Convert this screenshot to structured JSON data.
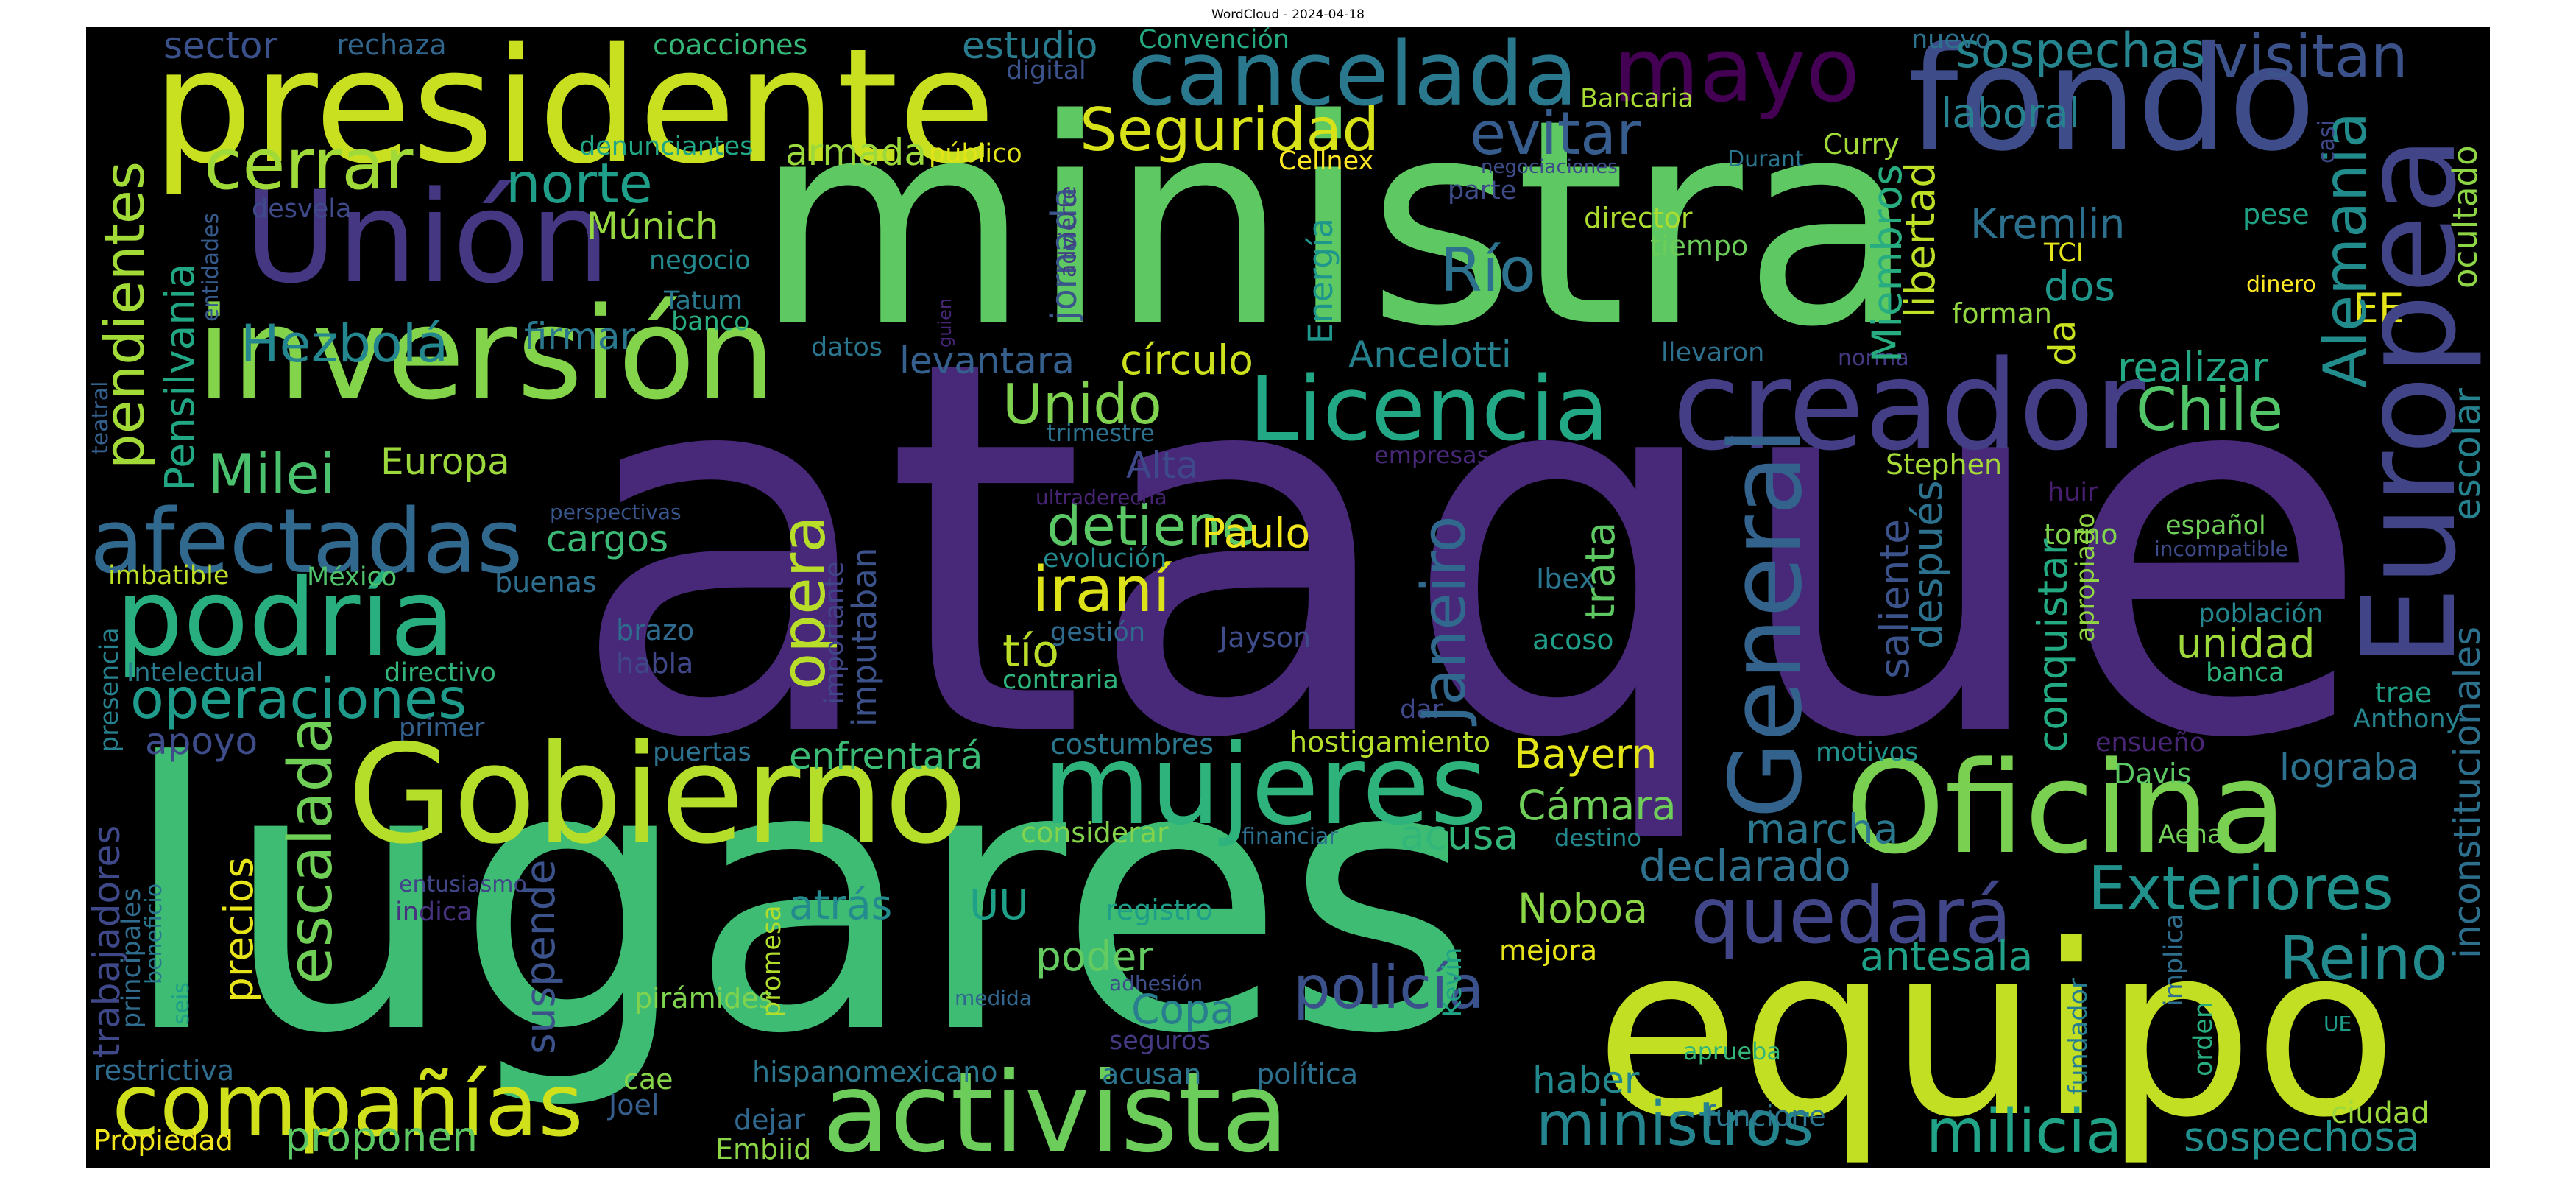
{
  "figure": {
    "title": "WordCloud - 2024-04-18"
  },
  "words": [
    {
      "id": "ataque",
      "text": "ataque",
      "color": "#482878"
    },
    {
      "id": "lugares",
      "text": "lugares",
      "color": "#3fbc73"
    },
    {
      "id": "ministra",
      "text": "ministra",
      "color": "#5ec962"
    },
    {
      "id": "presidente",
      "text": "presidente",
      "color": "#c8e020"
    },
    {
      "id": "equipo",
      "text": "equipo",
      "color": "#c2df23"
    },
    {
      "id": "fondo",
      "text": "fondo",
      "color": "#3e4c8a"
    },
    {
      "id": "europea",
      "text": "Europea",
      "color": "#414487"
    },
    {
      "id": "union",
      "text": "Unión",
      "color": "#453781"
    },
    {
      "id": "inversion",
      "text": "inversión",
      "color": "#84d44b"
    },
    {
      "id": "creador",
      "text": "creador",
      "color": "#433e85"
    },
    {
      "id": "gobierno",
      "text": "Gobierno",
      "color": "#b5de2b"
    },
    {
      "id": "oficina",
      "text": "Oficina",
      "color": "#7ad151"
    },
    {
      "id": "activista",
      "text": "activista",
      "color": "#6ccd5a"
    },
    {
      "id": "mujeres",
      "text": "mujeres",
      "color": "#2eb37c"
    },
    {
      "id": "cancelada",
      "text": "cancelada",
      "color": "#2a788e"
    },
    {
      "id": "mayo",
      "text": "mayo",
      "color": "#440154"
    },
    {
      "id": "podria",
      "text": "podría",
      "color": "#29af7f"
    },
    {
      "id": "companias",
      "text": "compañías",
      "color": "#d0e11c"
    },
    {
      "id": "afectadas",
      "text": "afectadas",
      "color": "#31688e"
    },
    {
      "id": "licencia",
      "text": "Licencia",
      "color": "#22a884"
    },
    {
      "id": "quedara",
      "text": "quedará",
      "color": "#404688"
    },
    {
      "id": "exteriores",
      "text": "Exteriores",
      "color": "#21918c"
    },
    {
      "id": "general",
      "text": "General",
      "color": "#33628d"
    },
    {
      "id": "cerrar",
      "text": "cerrar",
      "color": "#a0da39"
    },
    {
      "id": "seguridad",
      "text": "Seguridad",
      "color": "#d8e219"
    },
    {
      "id": "evitar",
      "text": "evitar",
      "color": "#365d8d"
    },
    {
      "id": "visitan",
      "text": "visitan",
      "color": "#3b528b"
    },
    {
      "id": "sospechas",
      "text": "sospechas",
      "color": "#25848e"
    },
    {
      "id": "norte",
      "text": "norte",
      "color": "#1f9e89"
    },
    {
      "id": "hezbola",
      "text": "Hezbolá",
      "color": "#24868e"
    },
    {
      "id": "pendientes",
      "text": "pendientes",
      "color": "#a2da37"
    },
    {
      "id": "milei",
      "text": "Milei",
      "color": "#4ac16d"
    },
    {
      "id": "pensilvania",
      "text": "Pensilvania",
      "color": "#22a785"
    },
    {
      "id": "operaciones",
      "text": "operaciones",
      "color": "#1e9b8a"
    },
    {
      "id": "unido",
      "text": "Unido",
      "color": "#7fd34e"
    },
    {
      "id": "rio",
      "text": "Río",
      "color": "#2c718e"
    },
    {
      "id": "alemania",
      "text": "Alemania",
      "color": "#228c8d"
    },
    {
      "id": "chile",
      "text": "Chile",
      "color": "#52c569"
    },
    {
      "id": "reino",
      "text": "Reino",
      "color": "#238a8d"
    },
    {
      "id": "ministros",
      "text": "ministros",
      "color": "#25858e"
    },
    {
      "id": "milicia",
      "text": "milicia",
      "color": "#20a386"
    },
    {
      "id": "irani",
      "text": "iraní",
      "color": "#dde318"
    },
    {
      "id": "policia",
      "text": "policía",
      "color": "#b8de29"
    },
    {
      "id": "detiene",
      "text": "detiene",
      "color": "#3b518b"
    },
    {
      "id": "opera",
      "text": "opera",
      "color": "#5ac864"
    },
    {
      "id": "escalada",
      "text": "escalada",
      "color": "#70cf57"
    },
    {
      "id": "janeiro",
      "text": "Janeiro",
      "color": "#31688e"
    },
    {
      "id": "miembros",
      "text": "Miembros",
      "color": "#27ad81"
    },
    {
      "id": "libertad",
      "text": "libertad",
      "color": "#bddf26"
    },
    {
      "id": "kremlin",
      "text": "Kremlin",
      "color": "#2d708e"
    },
    {
      "id": "laboral",
      "text": "laboral",
      "color": "#26828e"
    },
    {
      "id": "paulo",
      "text": "Paulo",
      "color": "#f1e51d"
    },
    {
      "id": "bayern",
      "text": "Bayern",
      "color": "#e2e418"
    },
    {
      "id": "camara",
      "text": "Cámara",
      "color": "#6ece58"
    },
    {
      "id": "noboa",
      "text": "Noboa",
      "color": "#8bd646"
    },
    {
      "id": "declarado",
      "text": "declarado",
      "color": "#2d718e"
    },
    {
      "id": "marcha",
      "text": "marcha",
      "color": "#2a778e"
    },
    {
      "id": "antesala",
      "text": "antesala",
      "color": "#1fa188"
    },
    {
      "id": "sospechosa",
      "text": "sospechosa",
      "color": "#218f8d"
    },
    {
      "id": "logaba",
      "text": "lograba",
      "color": "#2c728e"
    },
    {
      "id": "unidad",
      "text": "unidad",
      "color": "#9dd93b"
    },
    {
      "id": "inconstitucionales",
      "text": "inconstitucionales",
      "color": "#2d708e"
    },
    {
      "id": "escolar",
      "text": "escolar",
      "color": "#26828e"
    },
    {
      "id": "ocultado",
      "text": "ocultado",
      "color": "#8ed645"
    },
    {
      "id": "ee",
      "text": "EE",
      "color": "#e5e419"
    },
    {
      "id": "dos",
      "text": "dos",
      "color": "#1f968b"
    },
    {
      "id": "realizar",
      "text": "realizar",
      "color": "#22a884"
    },
    {
      "id": "da",
      "text": "da",
      "color": "#cae11f"
    },
    {
      "id": "conquistar",
      "text": "conquistar",
      "color": "#24aa83"
    },
    {
      "id": "despues",
      "text": "después",
      "color": "#2c728e"
    },
    {
      "id": "saliente",
      "text": "saliente",
      "color": "#3b528b"
    },
    {
      "id": "trata",
      "text": "trata",
      "color": "#5ec962"
    },
    {
      "id": "ancelotti",
      "text": "Ancelotti",
      "color": "#26818e"
    },
    {
      "id": "circulo",
      "text": "círculo",
      "color": "#cde11d"
    },
    {
      "id": "levantara",
      "text": "levantara",
      "color": "#355f8d"
    },
    {
      "id": "energia",
      "text": "Energía",
      "color": "#1f968b"
    },
    {
      "id": "jornada",
      "text": "jornada",
      "color": "#3a548c"
    },
    {
      "id": "armada",
      "text": "armada",
      "color": "#9bd93c"
    },
    {
      "id": "munich",
      "text": "Múnich",
      "color": "#95d840"
    },
    {
      "id": "firmar",
      "text": "firmar",
      "color": "#2a778e"
    },
    {
      "id": "europa",
      "text": "Europa",
      "color": "#9bd93c"
    },
    {
      "id": "cargos",
      "text": "cargos",
      "color": "#3aba76"
    },
    {
      "id": "alta",
      "text": "Alta",
      "color": "#3e4989"
    },
    {
      "id": "tio",
      "text": "tío",
      "color": "#bade28"
    },
    {
      "id": "imputaban",
      "text": "imputaban",
      "color": "#3b528b"
    },
    {
      "id": "enfrentara",
      "text": "enfrentará",
      "color": "#3cbb75"
    },
    {
      "id": "atras",
      "text": "atrás",
      "color": "#238a8d"
    },
    {
      "id": "uu",
      "text": "UU",
      "color": "#1fa088"
    },
    {
      "id": "poder",
      "text": "poder",
      "color": "#63cb5f"
    },
    {
      "id": "copa",
      "text": "Copa",
      "color": "#287d8e"
    },
    {
      "id": "acusa",
      "text": "acusa",
      "color": "#33b679"
    },
    {
      "id": "haber",
      "text": "haber",
      "color": "#23888e"
    },
    {
      "id": "apoyo",
      "text": "apoyo",
      "color": "#3e4c8a"
    },
    {
      "id": "precios",
      "text": "precios",
      "color": "#e7e419"
    },
    {
      "id": "suspende",
      "text": "suspende",
      "color": "#3b528b"
    },
    {
      "id": "proponen",
      "text": "proponen",
      "color": "#5cc863"
    },
    {
      "id": "trabajadores",
      "text": "trabajadores",
      "color": "#3f4889"
    },
    {
      "id": "sector",
      "text": "sector",
      "color": "#3b518b"
    },
    {
      "id": "estudio",
      "text": "estudio",
      "color": "#287c8e"
    },
    {
      "id": "rechaza",
      "text": "rechaza",
      "color": "#31678e"
    },
    {
      "id": "coacciones",
      "text": "coacciones",
      "color": "#35b779"
    },
    {
      "id": "convencion",
      "text": "Convención",
      "color": "#25ab82"
    },
    {
      "id": "digital",
      "text": "digital",
      "color": "#3b528b"
    },
    {
      "id": "nuevo",
      "text": "nuevo",
      "color": "#2c728e"
    },
    {
      "id": "bancaria",
      "text": "Bancaria",
      "color": "#a8db34"
    },
    {
      "id": "cellnex",
      "text": "Cellnex",
      "color": "#fde725"
    },
    {
      "id": "curry",
      "text": "Curry",
      "color": "#a2da37"
    },
    {
      "id": "publico",
      "text": "público",
      "color": "#e2e418"
    },
    {
      "id": "denunciantes",
      "text": "denunciantes",
      "color": "#22a785"
    },
    {
      "id": "desvela",
      "text": "desvela",
      "color": "#3e4a89"
    },
    {
      "id": "negocio",
      "text": "negocio",
      "color": "#23898e"
    },
    {
      "id": "director",
      "text": "director",
      "color": "#addc30"
    },
    {
      "id": "tiempo",
      "text": "tiempo",
      "color": "#6ccd5a"
    },
    {
      "id": "parte",
      "text": "parte",
      "color": "#3e4c8a"
    },
    {
      "id": "tatum",
      "text": "Tatum",
      "color": "#2a788e"
    },
    {
      "id": "banco",
      "text": "banco",
      "color": "#29af7f"
    },
    {
      "id": "datos",
      "text": "datos",
      "color": "#2a768e"
    },
    {
      "id": "llevaron",
      "text": "llevaron",
      "color": "#2d718e"
    },
    {
      "id": "forman",
      "text": "forman",
      "color": "#93d741"
    },
    {
      "id": "tci",
      "text": "TCI",
      "color": "#e5e419"
    },
    {
      "id": "pese",
      "text": "pese",
      "color": "#20a386"
    },
    {
      "id": "dinero",
      "text": "dinero",
      "color": "#fde725"
    },
    {
      "id": "norma",
      "text": "norma",
      "color": "#443a83"
    },
    {
      "id": "trimestre",
      "text": "trimestre",
      "color": "#2c728e"
    },
    {
      "id": "empresas",
      "text": "empresas",
      "color": "#482878"
    },
    {
      "id": "ultraderecha",
      "text": "ultraderecha",
      "color": "#482475"
    },
    {
      "id": "stephen",
      "text": "Stephen",
      "color": "#a5db36"
    },
    {
      "id": "huir",
      "text": "huir",
      "color": "#481f70"
    },
    {
      "id": "torno",
      "text": "torno",
      "color": "#7fd34e"
    },
    {
      "id": "espanol",
      "text": "español",
      "color": "#6ece58"
    },
    {
      "id": "incompatible",
      "text": "incompatible",
      "color": "#3e4a89"
    },
    {
      "id": "apropiado",
      "text": "apropiado",
      "color": "#90d743"
    },
    {
      "id": "poblacion",
      "text": "población",
      "color": "#24868e"
    },
    {
      "id": "banca",
      "text": "banca",
      "color": "#2eb37c"
    },
    {
      "id": "trae",
      "text": "trae",
      "color": "#1fa187"
    },
    {
      "id": "anthony",
      "text": "Anthony",
      "color": "#25838e"
    },
    {
      "id": "ensueno",
      "text": "ensueño",
      "color": "#482575"
    },
    {
      "id": "davis",
      "text": "Davis",
      "color": "#5cc863"
    },
    {
      "id": "motivos",
      "text": "motivos",
      "color": "#21918c"
    },
    {
      "id": "aena",
      "text": "Aena",
      "color": "#73d056"
    },
    {
      "id": "implica",
      "text": "implica",
      "color": "#2e6e8e"
    },
    {
      "id": "orden",
      "text": "orden",
      "color": "#28ae80"
    },
    {
      "id": "fundador",
      "text": "fundador",
      "color": "#287d8e"
    },
    {
      "id": "ue",
      "text": "UE",
      "color": "#1e9c89"
    },
    {
      "id": "ciudad",
      "text": "ciudad",
      "color": "#9bd93c"
    },
    {
      "id": "aprueba",
      "text": "aprueba",
      "color": "#34b679"
    },
    {
      "id": "funcione",
      "text": "funcione",
      "color": "#2b758e"
    },
    {
      "id": "dejar",
      "text": "dejar",
      "color": "#31688e"
    },
    {
      "id": "embiid",
      "text": "Embiid",
      "color": "#8bd646"
    },
    {
      "id": "hispanomexicano",
      "text": "hispanomexicano",
      "color": "#2a778e"
    },
    {
      "id": "acusan",
      "text": "acusan",
      "color": "#2b758e"
    },
    {
      "id": "politica",
      "text": "política",
      "color": "#2d708e"
    },
    {
      "id": "cae",
      "text": "cae",
      "color": "#86d549"
    },
    {
      "id": "joel",
      "text": "Joel",
      "color": "#355e8d"
    },
    {
      "id": "propiedad",
      "text": "Propiedad",
      "color": "#f1e51d"
    },
    {
      "id": "restrictiva",
      "text": "restrictiva",
      "color": "#2f6c8e"
    },
    {
      "id": "piramides",
      "text": "pirámides",
      "color": "#7fd34e"
    },
    {
      "id": "medida",
      "text": "medida",
      "color": "#31678e"
    },
    {
      "id": "adhesion",
      "text": "adhesión",
      "color": "#3d4d8a"
    },
    {
      "id": "seguros",
      "text": "seguros",
      "color": "#443983"
    },
    {
      "id": "mejora",
      "text": "mejora",
      "color": "#e7e419"
    },
    {
      "id": "kevin",
      "text": "Kevin",
      "color": "#20a386"
    },
    {
      "id": "promesa",
      "text": "promesa",
      "color": "#b2dd2d"
    },
    {
      "id": "registro",
      "text": "registro",
      "color": "#1f9e89"
    },
    {
      "id": "considerar",
      "text": "considerar",
      "color": "#84d44b"
    },
    {
      "id": "financiar",
      "text": "financiar",
      "color": "#2c718e"
    },
    {
      "id": "destino",
      "text": "destino",
      "color": "#23888e"
    },
    {
      "id": "hostigamiento",
      "text": "hostigamiento",
      "color": "#b5de2b"
    },
    {
      "id": "costumbres",
      "text": "costumbres",
      "color": "#2a788e"
    },
    {
      "id": "dar",
      "text": "dar",
      "color": "#3f4889"
    },
    {
      "id": "puertas",
      "text": "puertas",
      "color": "#2c728e"
    },
    {
      "id": "contraria",
      "text": "contraria",
      "color": "#2eb37c"
    },
    {
      "id": "gestion",
      "text": "gestión",
      "color": "#2f6b8e"
    },
    {
      "id": "evolucion",
      "text": "evolución",
      "color": "#238a8d"
    },
    {
      "id": "importante",
      "text": "importante",
      "color": "#3f4788"
    },
    {
      "id": "jayson",
      "text": "Jayson",
      "color": "#3e4c8a"
    },
    {
      "id": "ibex",
      "text": "Ibex",
      "color": "#2b758e"
    },
    {
      "id": "acoso",
      "text": "acoso",
      "color": "#1f9e89"
    },
    {
      "id": "brazo",
      "text": "brazo",
      "color": "#2f6b8e"
    },
    {
      "id": "habla",
      "text": "habla",
      "color": "#3f4788"
    },
    {
      "id": "buenas",
      "text": "buenas",
      "color": "#2e6e8e"
    },
    {
      "id": "mexico",
      "text": "México",
      "color": "#4ec36b"
    },
    {
      "id": "imbatible",
      "text": "imbatible",
      "color": "#bddf26"
    },
    {
      "id": "perspectivas",
      "text": "perspectivas",
      "color": "#39568c"
    },
    {
      "id": "intelectual",
      "text": "Intelectual",
      "color": "#287c8e"
    },
    {
      "id": "directivo",
      "text": "directivo",
      "color": "#31b57b"
    },
    {
      "id": "primer",
      "text": "primer",
      "color": "#34608d"
    },
    {
      "id": "presencia",
      "text": "presencia",
      "color": "#26828e"
    },
    {
      "id": "principales",
      "text": "principales",
      "color": "#2f6c8e"
    },
    {
      "id": "beneficio",
      "text": "beneficio",
      "color": "#29798e"
    },
    {
      "id": "entusiasmo",
      "text": "entusiasmo",
      "color": "#1fa088"
    },
    {
      "id": "indica",
      "text": "indica",
      "color": "#404688"
    },
    {
      "id": "seis",
      "text": "seis",
      "color": "#46327e"
    },
    {
      "id": "teatral",
      "text": "teatral",
      "color": "#34608d"
    },
    {
      "id": "entidades",
      "text": "entidades",
      "color": "#375a8c"
    },
    {
      "id": "negociaciones",
      "text": "negociaciones",
      "color": "#482677"
    },
    {
      "id": "durant",
      "text": "Durant",
      "color": "#433d84"
    },
    {
      "id": "guien",
      "text": "guien",
      "color": "#3d4d8a"
    },
    {
      "id": "advierte",
      "text": "advierte",
      "color": "#2a768e"
    },
    {
      "id": "casi",
      "text": "casi",
      "color": "#3f4889"
    }
  ]
}
